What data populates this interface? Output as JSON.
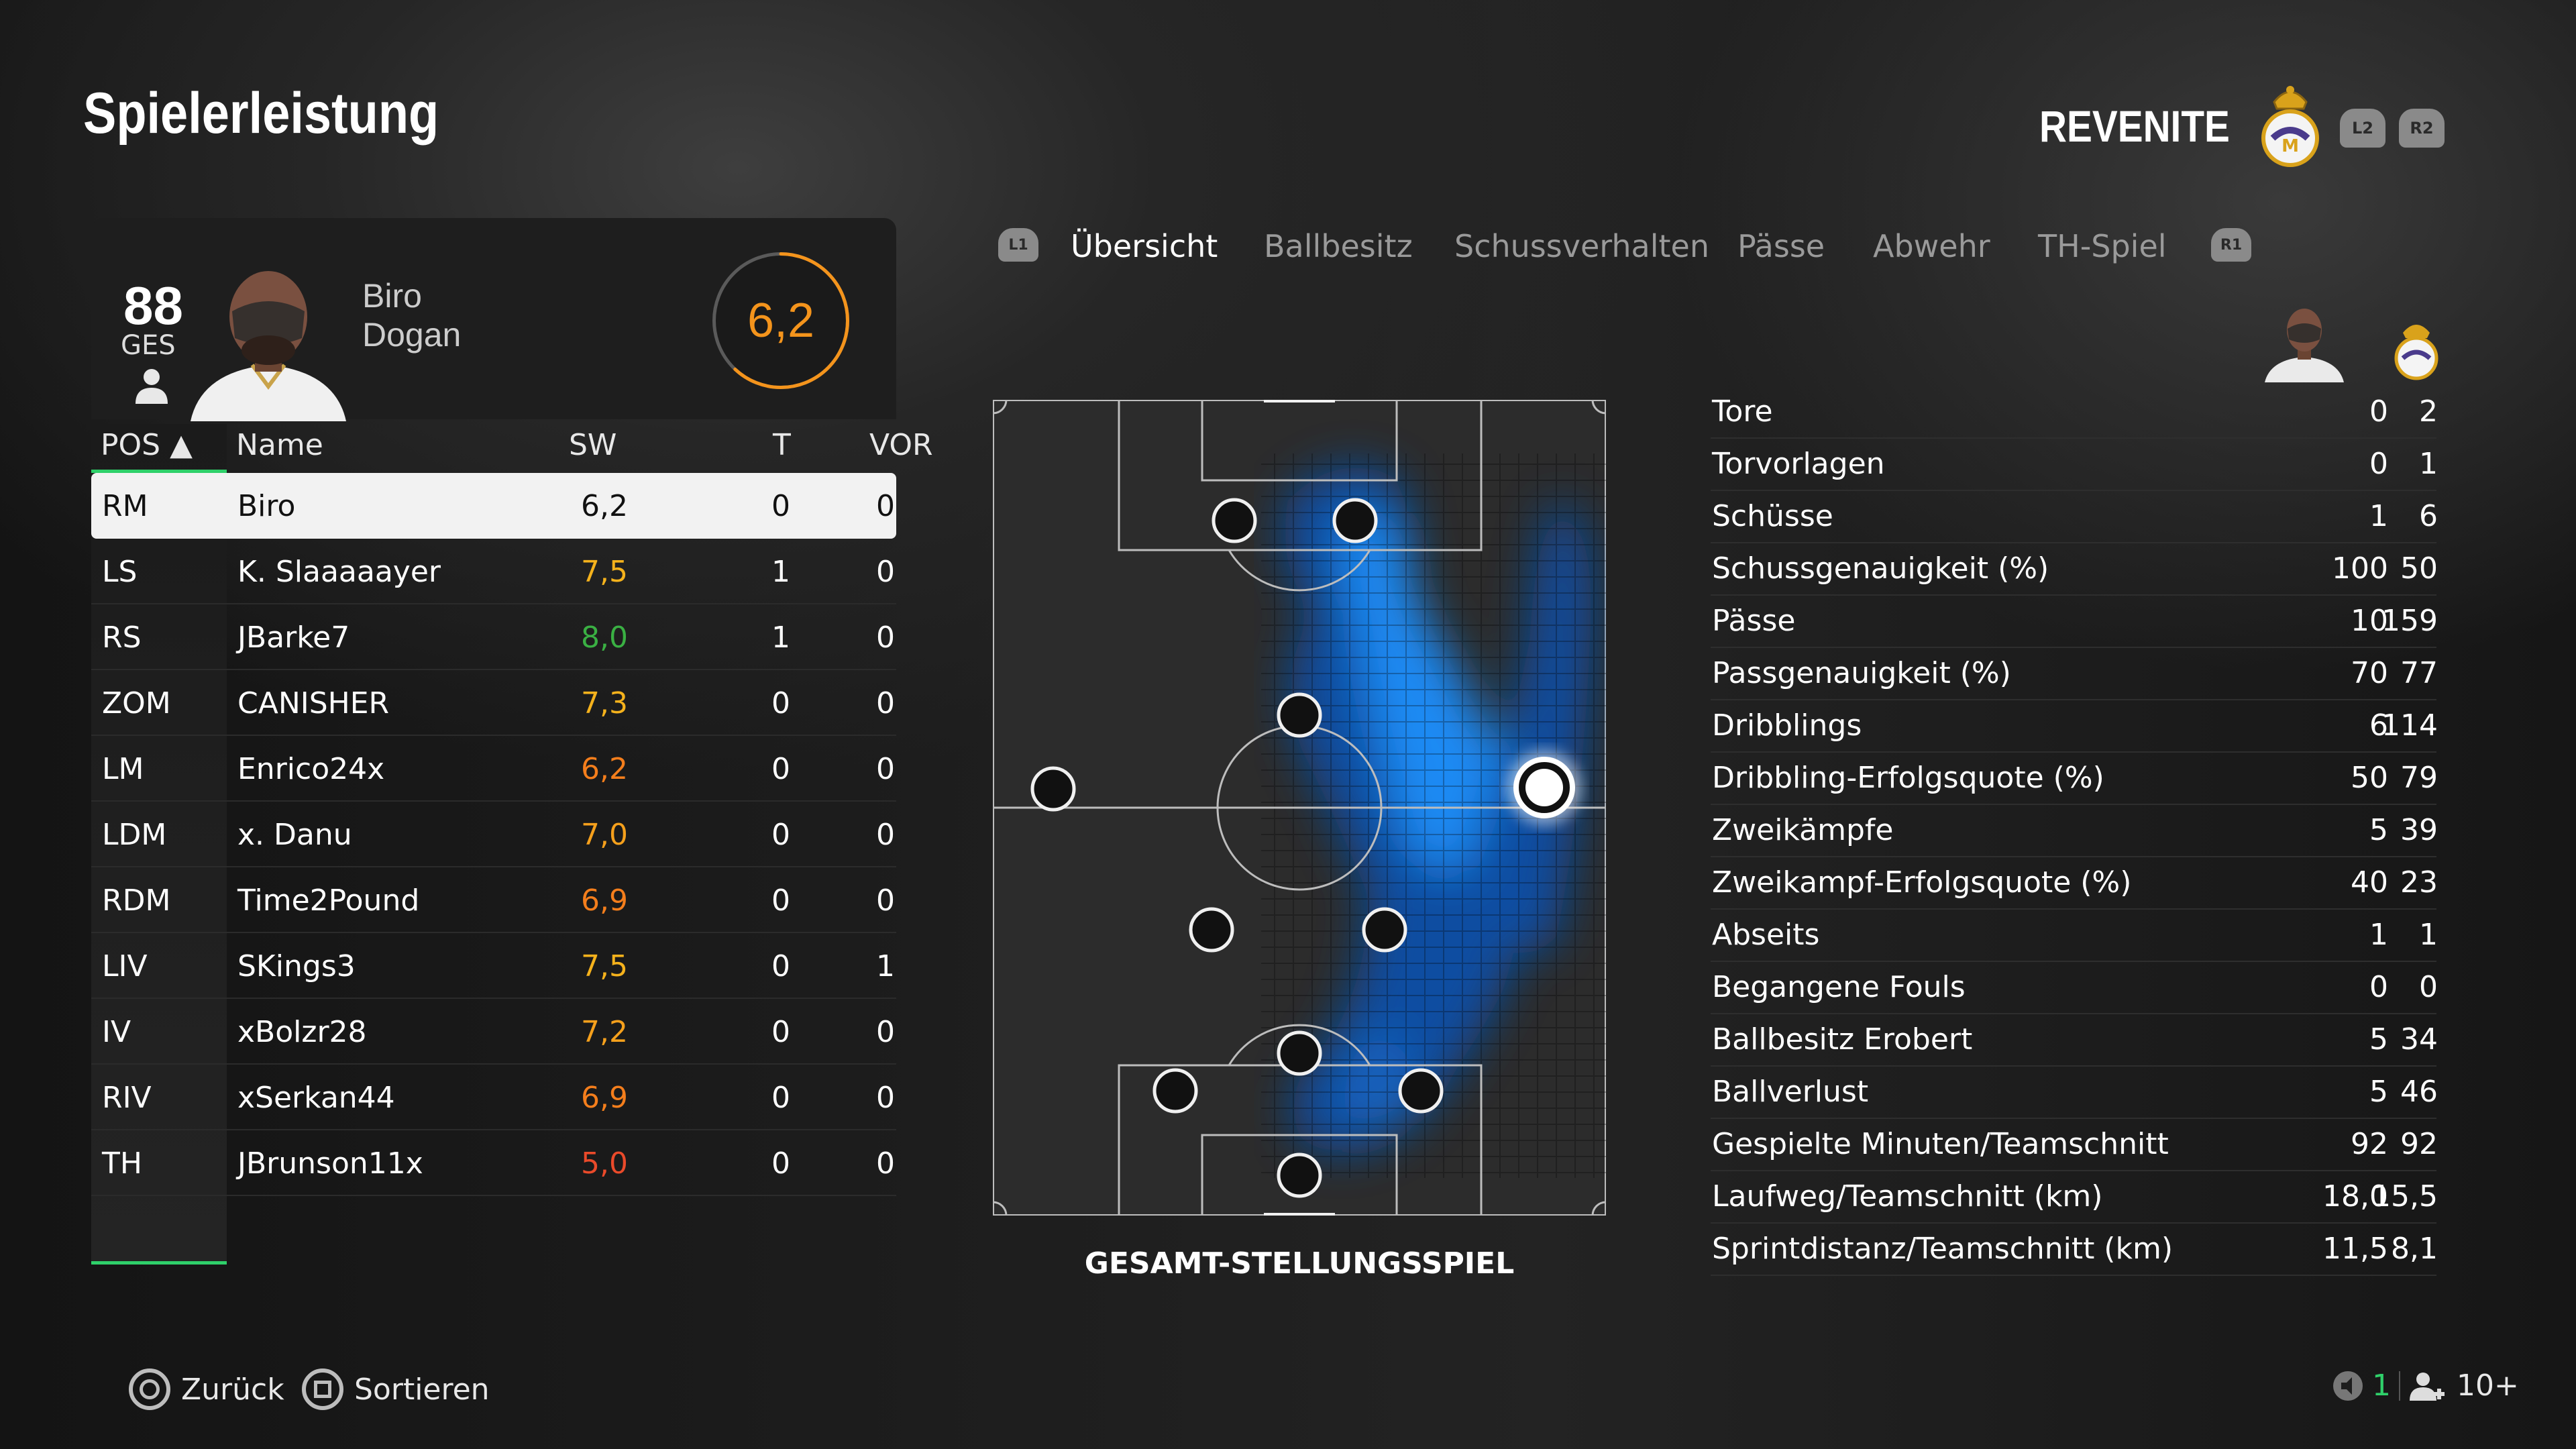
{
  "header": {
    "title": "Spielerleistung",
    "team": "REVENITE",
    "l2": "L2",
    "r2": "R2"
  },
  "player_card": {
    "overall": "88",
    "overall_label": "GES",
    "first_name": "Biro",
    "last_name": "Dogan",
    "rating": "6,2",
    "rating_fraction": 0.62
  },
  "table": {
    "headers": {
      "pos": "POS ▲",
      "name": "Name",
      "sw": "SW",
      "t": "T",
      "vor": "VOR"
    },
    "rows": [
      {
        "pos": "RM",
        "name": "Biro",
        "sw": "6,2",
        "t": "0",
        "vor": "0",
        "color": "#111111"
      },
      {
        "pos": "LS",
        "name": "K. Slaaaaayer",
        "sw": "7,5",
        "t": "1",
        "vor": "0",
        "color": "#f5b21c"
      },
      {
        "pos": "RS",
        "name": "JBarke7",
        "sw": "8,0",
        "t": "1",
        "vor": "0",
        "color": "#3ab043"
      },
      {
        "pos": "ZOM",
        "name": "CANISHER",
        "sw": "7,3",
        "t": "0",
        "vor": "0",
        "color": "#f5b21c"
      },
      {
        "pos": "LM",
        "name": "Enrico24x",
        "sw": "6,2",
        "t": "0",
        "vor": "0",
        "color": "#f47e1c"
      },
      {
        "pos": "LDM",
        "name": "x. Danu",
        "sw": "7,0",
        "t": "0",
        "vor": "0",
        "color": "#f5a01c"
      },
      {
        "pos": "RDM",
        "name": "Time2Pound",
        "sw": "6,9",
        "t": "0",
        "vor": "0",
        "color": "#f47e1c"
      },
      {
        "pos": "LIV",
        "name": "SKings3",
        "sw": "7,5",
        "t": "0",
        "vor": "1",
        "color": "#f5b21c"
      },
      {
        "pos": "IV",
        "name": "xBolzr28",
        "sw": "7,2",
        "t": "0",
        "vor": "0",
        "color": "#f5a01c"
      },
      {
        "pos": "RIV",
        "name": "xSerkan44",
        "sw": "6,9",
        "t": "0",
        "vor": "0",
        "color": "#f47e1c"
      },
      {
        "pos": "TH",
        "name": "JBrunson11x",
        "sw": "5,0",
        "t": "0",
        "vor": "0",
        "color": "#ea4a2a"
      }
    ]
  },
  "tabs": {
    "l1": "L1",
    "r1": "R1",
    "items": [
      "Übersicht",
      "Ballbesitz",
      "Schussverhalten",
      "Pässe",
      "Abwehr",
      "TH-Spiel"
    ],
    "active": 0
  },
  "pitch_label": "GESAMT-STELLUNGSSPIEL",
  "stats": [
    {
      "label": "Tore",
      "player": "0",
      "team": "2"
    },
    {
      "label": "Torvorlagen",
      "player": "0",
      "team": "1"
    },
    {
      "label": "Schüsse",
      "player": "1",
      "team": "6"
    },
    {
      "label": "Schussgenauigkeit (%)",
      "player": "100",
      "team": "50"
    },
    {
      "label": "Pässe",
      "player": "10",
      "team": "159"
    },
    {
      "label": "Passgenauigkeit (%)",
      "player": "70",
      "team": "77"
    },
    {
      "label": "Dribblings",
      "player": "6",
      "team": "114"
    },
    {
      "label": "Dribbling-Erfolgsquote (%)",
      "player": "50",
      "team": "79"
    },
    {
      "label": "Zweikämpfe",
      "player": "5",
      "team": "39"
    },
    {
      "label": "Zweikampf-Erfolgsquote (%)",
      "player": "40",
      "team": "23"
    },
    {
      "label": "Abseits",
      "player": "1",
      "team": "1"
    },
    {
      "label": "Begangene Fouls",
      "player": "0",
      "team": "0"
    },
    {
      "label": "Ballbesitz Erobert",
      "player": "5",
      "team": "34"
    },
    {
      "label": "Ballverlust",
      "player": "5",
      "team": "46"
    },
    {
      "label": "Gespielte Minuten/Teamschnitt",
      "player": "92",
      "team": "92"
    },
    {
      "label": "Laufweg/Teamschnitt (km)",
      "player": "18,0",
      "team": "15,5"
    },
    {
      "label": "Sprintdistanz/Teamschnitt (km)",
      "player": "11,5",
      "team": "8,1"
    }
  ],
  "footer": {
    "back": "Zurück",
    "sort": "Sortieren",
    "count": "1",
    "players": "10+"
  },
  "colors": {
    "accent_orange": "#f4941c",
    "heat_blue": "#1a90ff",
    "selection_green": "#2fd06a"
  }
}
